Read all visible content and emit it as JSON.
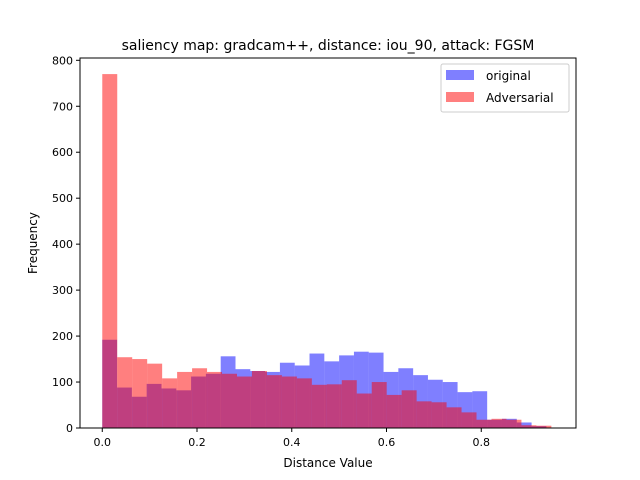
{
  "chart_data": {
    "type": "bar",
    "title": "saliency map: gradcam++, distance: iou_90, attack: FGSM",
    "xlabel": "Distance Value",
    "ylabel": "Frequency",
    "xlim": [
      -0.047,
      1.0
    ],
    "ylim": [
      0,
      805
    ],
    "xticks": [
      0.0,
      0.2,
      0.4,
      0.6,
      0.8
    ],
    "xtick_labels": [
      "0.0",
      "0.2",
      "0.4",
      "0.6",
      "0.8"
    ],
    "yticks": [
      0,
      100,
      200,
      300,
      400,
      500,
      600,
      700,
      800
    ],
    "ytick_labels": [
      "0",
      "100",
      "200",
      "300",
      "400",
      "500",
      "600",
      "700",
      "800"
    ],
    "grid": false,
    "legend_position": "top-right",
    "series": [
      {
        "name": "original",
        "color": "#0000ff",
        "opacity": 0.5,
        "bin_start": 0.0,
        "bin_width": 0.03125,
        "values": [
          192,
          88,
          68,
          96,
          86,
          82,
          112,
          118,
          156,
          128,
          124,
          122,
          142,
          136,
          162,
          145,
          158,
          166,
          164,
          122,
          130,
          115,
          105,
          100,
          78,
          80,
          18,
          20,
          12,
          4
        ]
      },
      {
        "name": "Adversarial",
        "color": "#ff0000",
        "opacity": 0.5,
        "bin_start": 0.0,
        "bin_width": 0.0316,
        "values": [
          770,
          154,
          150,
          140,
          108,
          122,
          130,
          122,
          118,
          112,
          124,
          115,
          112,
          108,
          94,
          95,
          104,
          75,
          100,
          72,
          82,
          58,
          56,
          45,
          34,
          18,
          20,
          18,
          6,
          5
        ]
      }
    ]
  }
}
